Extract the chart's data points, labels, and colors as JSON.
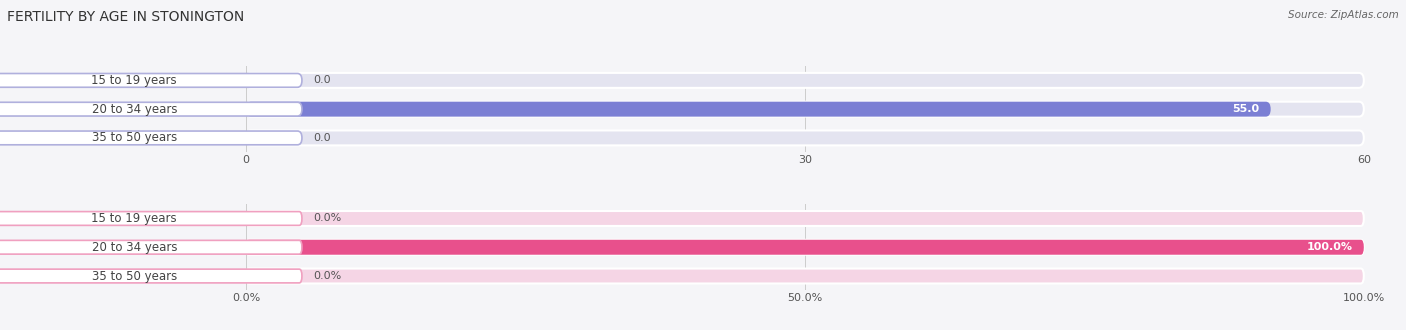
{
  "title": "FERTILITY BY AGE IN STONINGTON",
  "source": "Source: ZipAtlas.com",
  "top_chart": {
    "categories": [
      "15 to 19 years",
      "20 to 34 years",
      "35 to 50 years"
    ],
    "values": [
      0.0,
      55.0,
      0.0
    ],
    "xlim": [
      0,
      60
    ],
    "xticks": [
      0.0,
      30.0,
      60.0
    ],
    "bar_color": "#7b7fd4",
    "bar_bg_color": "#e4e4f0",
    "label_box_border_color": "#b0b0dd",
    "label_box_fill_color": "#ffffff",
    "label_text_color": "#444444",
    "value_color_inside": "#ffffff",
    "value_color_outside": "#555555"
  },
  "bottom_chart": {
    "categories": [
      "15 to 19 years",
      "20 to 34 years",
      "35 to 50 years"
    ],
    "values": [
      0.0,
      100.0,
      0.0
    ],
    "xlim": [
      0,
      100
    ],
    "xticks": [
      0.0,
      50.0,
      100.0
    ],
    "xtick_labels": [
      "0.0%",
      "50.0%",
      "100.0%"
    ],
    "bar_color": "#e8508c",
    "bar_bg_color": "#f5d5e5",
    "label_box_border_color": "#f0a0c0",
    "label_box_fill_color": "#ffffff",
    "label_text_color": "#444444",
    "value_color_inside": "#ffffff",
    "value_color_outside": "#555555"
  },
  "background_color": "#f5f5f8",
  "bar_height": 0.52,
  "fig_width": 14.06,
  "fig_height": 3.3,
  "title_fontsize": 10,
  "label_fontsize": 8.5,
  "value_fontsize": 8,
  "tick_fontsize": 8,
  "source_fontsize": 7.5
}
